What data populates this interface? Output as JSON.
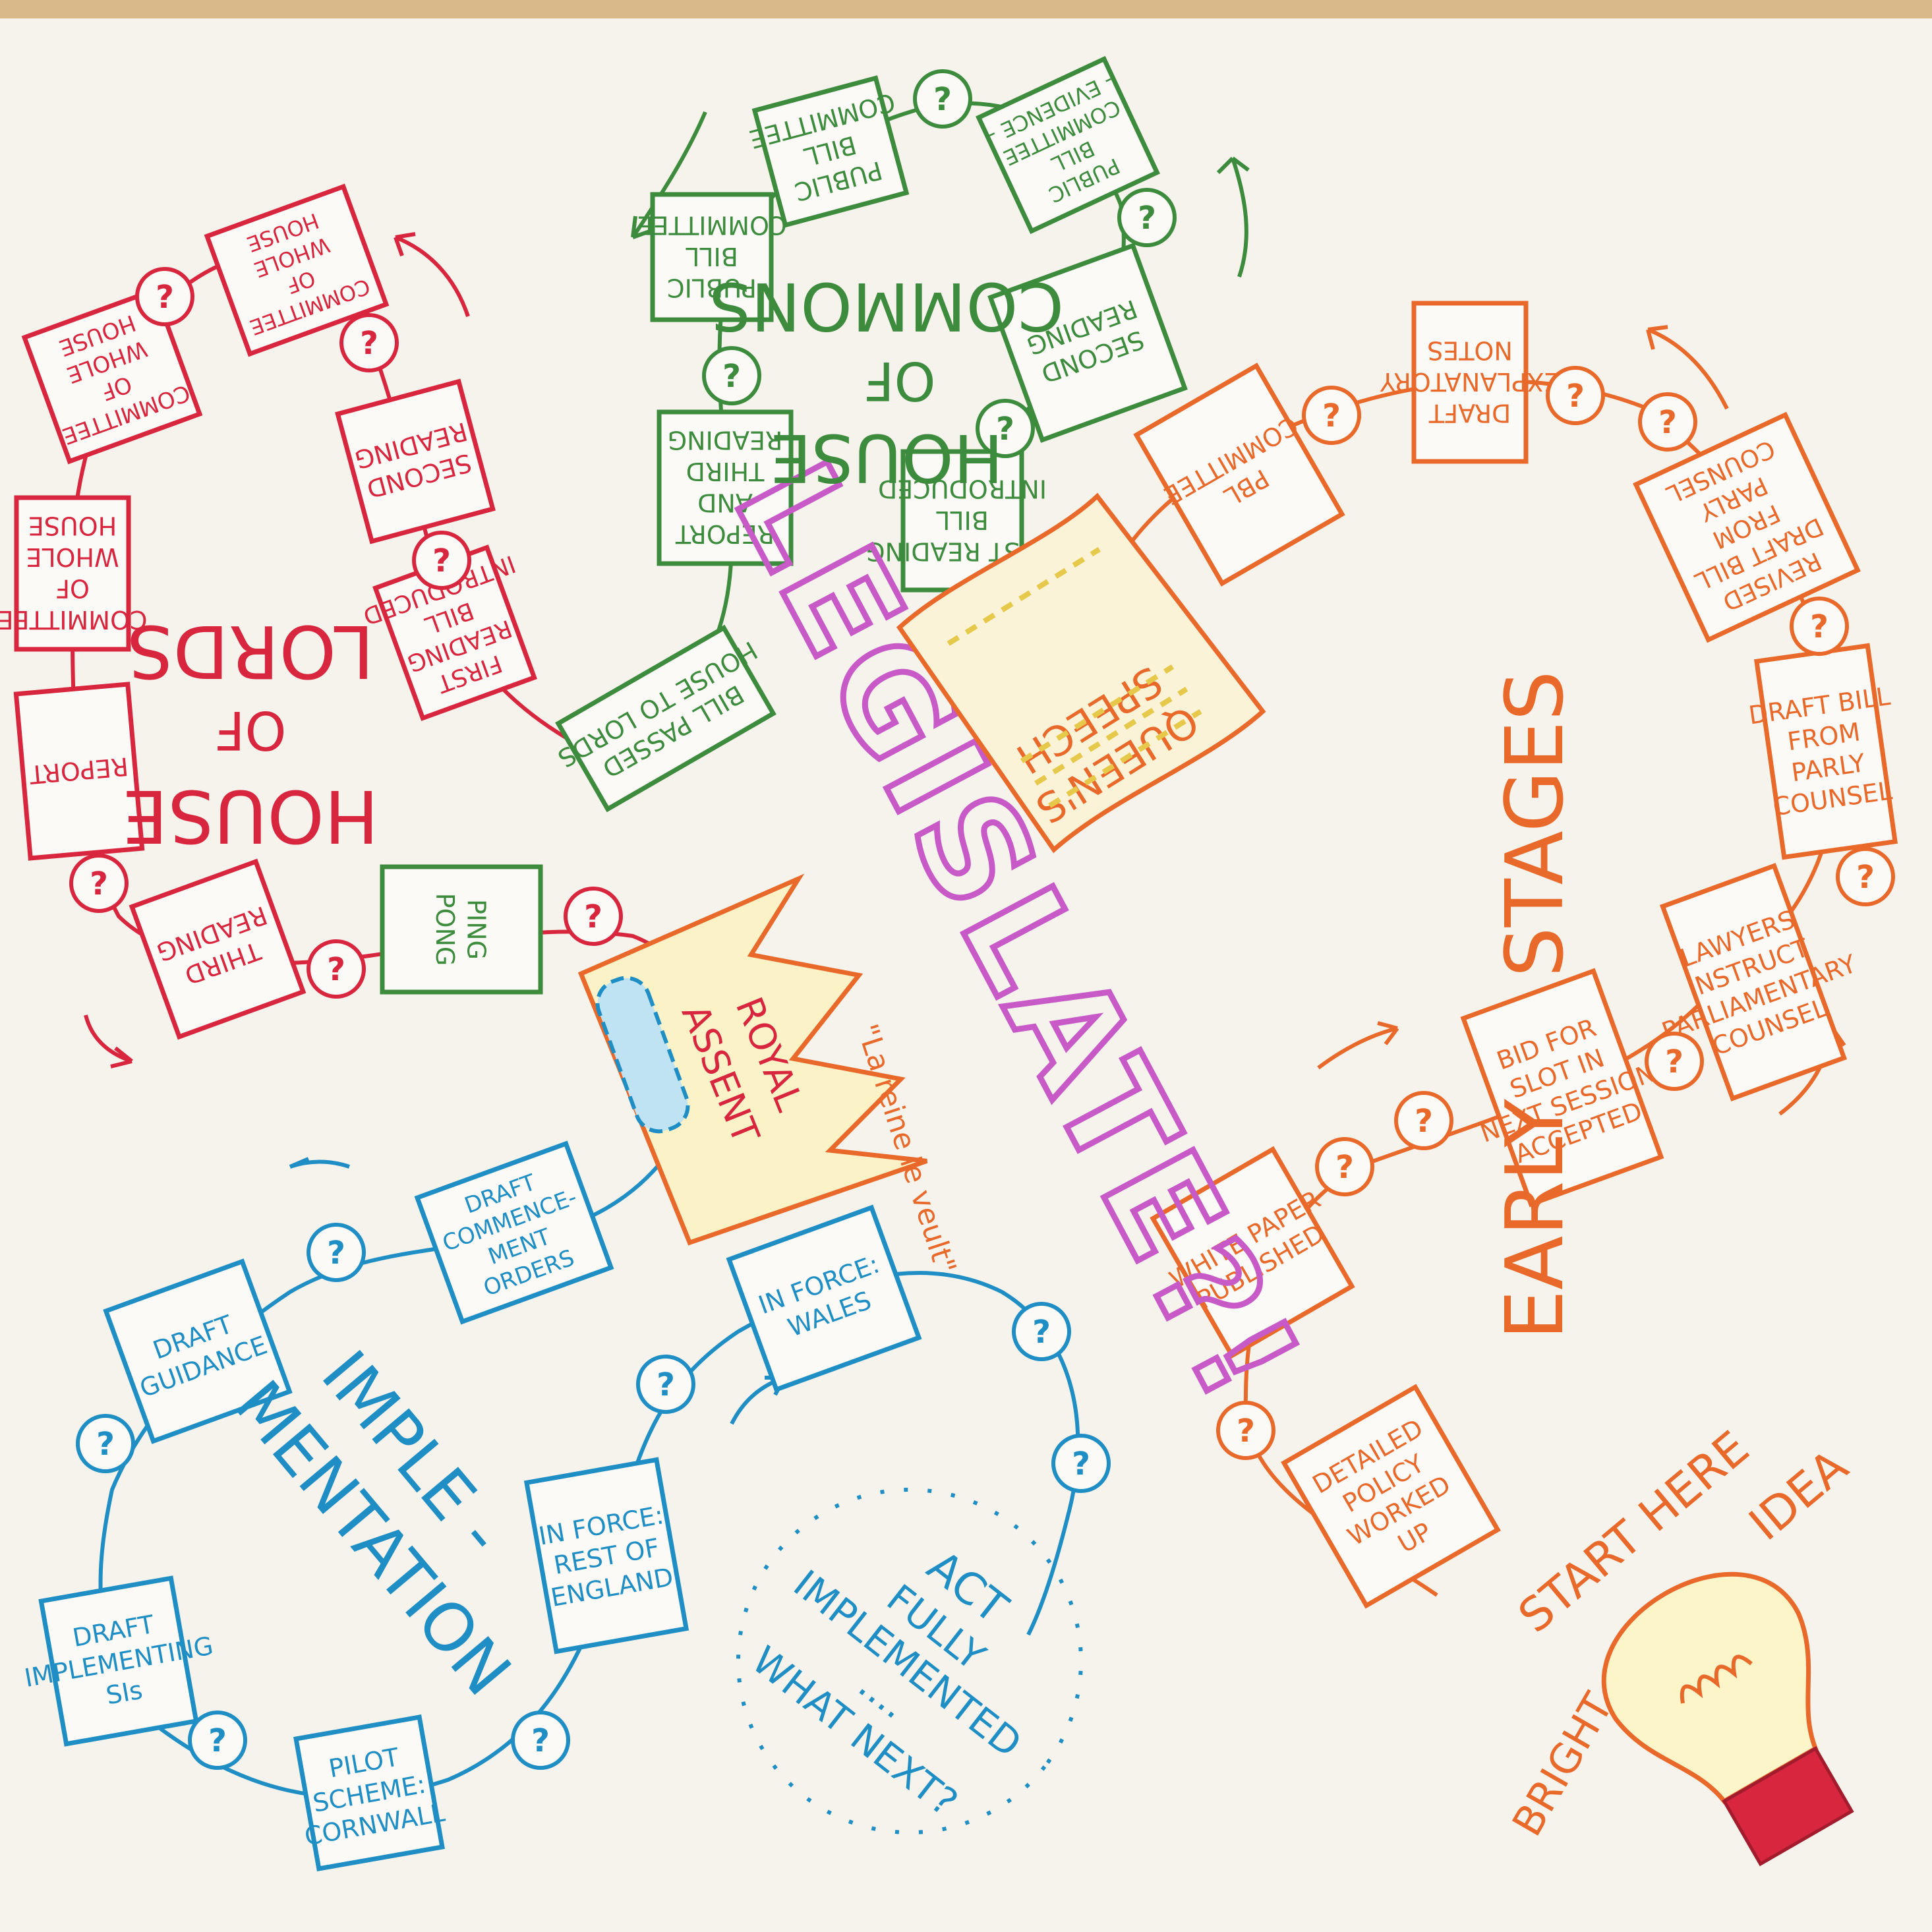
{
  "colors": {
    "lords": "#d7263d",
    "commons": "#3d8b3d",
    "early": "#e8692a",
    "implementation": "#1f8ec4",
    "title": "#c85ac8",
    "highlight": "#e6e04a",
    "paper": "#f6f3ec",
    "wood": "#d9b98a"
  },
  "title": {
    "text": "LEGISLATE?!"
  },
  "question_mark": "?",
  "sections": {
    "lords": {
      "label_line1": "HOUSE",
      "label_line2": "OF",
      "label_line3": "LORDS"
    },
    "commons": {
      "label_line1": "HOUSE",
      "label_line2": "OF",
      "label_line3": "COMMONS"
    },
    "early": {
      "label_line1": "EARLY",
      "label_line2": "STAGES"
    },
    "implementation": {
      "label_line1": "IMPLE -",
      "label_line2": "MENTATION"
    }
  },
  "start": {
    "start_here": "START HERE",
    "idea": "IDEA",
    "bright": "BRIGHT"
  },
  "early_boxes": [
    {
      "lines": [
        "DETAILED",
        "POLICY",
        "WORKED",
        "UP"
      ]
    },
    {
      "lines": [
        "WHITE PAPER",
        "PUBLISHED"
      ]
    },
    {
      "lines": [
        "BID FOR",
        "SLOT IN",
        "NEXT SESSION",
        "ACCEPTED"
      ]
    },
    {
      "lines": [
        "LAWYERS",
        "INSTRUCT",
        "PARLIAMENTARY",
        "COUNSEL"
      ]
    },
    {
      "lines": [
        "DRAFT BILL",
        "FROM",
        "PARLY",
        "COUNSEL"
      ]
    },
    {
      "lines": [
        "REVISED",
        "DRAFT BILL",
        "FROM",
        "PARLY",
        "COUNSEL"
      ]
    },
    {
      "lines": [
        "DRAFT",
        "EXPLANATORY",
        "NOTES"
      ]
    },
    {
      "lines": [
        "PBL",
        "COMMITTEE"
      ]
    }
  ],
  "queens_speech": {
    "lines": [
      "QUEEN'S",
      "SPEECH"
    ]
  },
  "commons_boxes": [
    {
      "lines": [
        "FIRST READING",
        "BILL",
        "INTRODUCED"
      ]
    },
    {
      "lines": [
        "SECOND",
        "READING"
      ]
    },
    {
      "lines": [
        "PUBLIC",
        "BILL",
        "COMMITTEE",
        "- EVIDENCE -"
      ]
    },
    {
      "lines": [
        "PUBLIC",
        "BILL",
        "COMMITTEE"
      ]
    },
    {
      "lines": [
        "PUBLIC",
        "BILL",
        "COMMITTEE"
      ]
    },
    {
      "lines": [
        "REPORT",
        "AND",
        "THIRD",
        "READING"
      ]
    },
    {
      "lines": [
        "BILL PASSED",
        "HOUSE TO LORDS"
      ]
    }
  ],
  "lords_boxes": [
    {
      "lines": [
        "FIRST",
        "READING",
        "BILL",
        "INTRODUCED"
      ]
    },
    {
      "lines": [
        "SECOND",
        "READING"
      ]
    },
    {
      "lines": [
        "COMMITTEE",
        "OF",
        "WHOLE",
        "HOUSE"
      ]
    },
    {
      "lines": [
        "COMMITTEE",
        "OF",
        "WHOLE",
        "HOUSE"
      ]
    },
    {
      "lines": [
        "COMMITTEE",
        "OF",
        "WHOLE",
        "HOUSE"
      ]
    },
    {
      "lines": [
        "REPORT"
      ]
    },
    {
      "lines": [
        "THIRD",
        "READING"
      ]
    },
    {
      "lines": [
        "PING",
        "PONG"
      ]
    }
  ],
  "royal_assent": {
    "lines": [
      "ROYAL",
      "ASSENT"
    ],
    "note": "\"La reine le veult\""
  },
  "impl_boxes": [
    {
      "lines": [
        "DRAFT",
        "COMMENCE-",
        "MENT",
        "ORDERS"
      ]
    },
    {
      "lines": [
        "DRAFT",
        "GUIDANCE"
      ]
    },
    {
      "lines": [
        "DRAFT",
        "IMPLEMENTING",
        "SIs"
      ]
    },
    {
      "lines": [
        "PILOT",
        "SCHEME:",
        "CORNWALL"
      ]
    },
    {
      "lines": [
        "IN FORCE:",
        "REST OF",
        "ENGLAND"
      ]
    },
    {
      "lines": [
        "IN FORCE:",
        "WALES"
      ]
    }
  ],
  "act": {
    "lines": [
      "ACT",
      "FULLY",
      "IMPLEMENTED",
      "....",
      "WHAT NEXT?"
    ]
  }
}
